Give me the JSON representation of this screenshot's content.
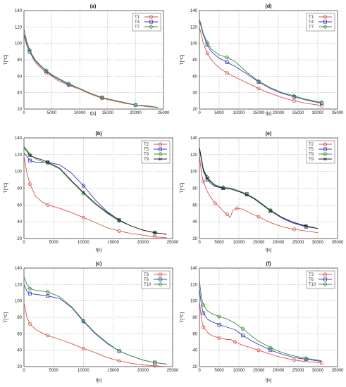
{
  "chart_data": [
    {
      "type": "line",
      "title": "(a)",
      "xlabel": "t[s]",
      "ylabel": "T[°C]",
      "xlim": [
        0,
        25000
      ],
      "ylim": [
        20,
        140
      ],
      "xticks": [
        0,
        5000,
        10000,
        15000,
        20000,
        25000
      ],
      "yticks": [
        20,
        40,
        60,
        80,
        100,
        120,
        140
      ],
      "grid": true,
      "legend": "top-right",
      "series": [
        {
          "name": "T1",
          "color": "#d9534f",
          "marker": "circle",
          "x": [
            0,
            500,
            1000,
            2000,
            3000,
            4000,
            5000,
            6000,
            8000,
            10000,
            12000,
            14000,
            16000,
            18000,
            20000,
            22000,
            24000
          ],
          "y": [
            112,
            100,
            90,
            77,
            70,
            64,
            60,
            55,
            49,
            44,
            38,
            33,
            30,
            27,
            25,
            23,
            22
          ]
        },
        {
          "name": "T4",
          "color": "#3a3abf",
          "marker": "square",
          "x": [
            0,
            500,
            1000,
            2000,
            3000,
            4000,
            5000,
            6000,
            8000,
            10000,
            12000,
            14000,
            16000,
            18000,
            20000,
            22000,
            24000
          ],
          "y": [
            110,
            98,
            90,
            79,
            72,
            66,
            61,
            57,
            50,
            45,
            39,
            34,
            31,
            28,
            25,
            24,
            22
          ]
        },
        {
          "name": "T7",
          "color": "#3f8f3f",
          "marker": "diamond",
          "x": [
            0,
            500,
            1000,
            2000,
            3000,
            4000,
            5000,
            6000,
            8000,
            10000,
            12000,
            14000,
            16000,
            18000,
            20000,
            22000,
            24000
          ],
          "y": [
            118,
            103,
            92,
            80,
            73,
            67,
            62,
            58,
            51,
            45,
            39,
            34,
            31,
            28,
            25,
            24,
            22
          ]
        }
      ]
    },
    {
      "type": "line",
      "title": "(d)",
      "xlabel": "t[s]",
      "ylabel": "T[°C]",
      "xlim": [
        0,
        35000
      ],
      "ylim": [
        20,
        140
      ],
      "xticks": [
        0,
        5000,
        10000,
        15000,
        20000,
        25000,
        30000,
        35000
      ],
      "yticks": [
        20,
        40,
        60,
        80,
        100,
        120,
        140
      ],
      "grid": true,
      "legend": "top-right",
      "series": [
        {
          "name": "T1",
          "color": "#d9534f",
          "marker": "circle",
          "x": [
            0,
            1000,
            2000,
            3000,
            5000,
            7000,
            9000,
            12000,
            15000,
            18000,
            21000,
            24000,
            27000,
            30000,
            31000
          ],
          "y": [
            120,
            100,
            88,
            80,
            70,
            64,
            59,
            52,
            45,
            39,
            34,
            30,
            27,
            25,
            24
          ]
        },
        {
          "name": "T4",
          "color": "#3a3abf",
          "marker": "square",
          "x": [
            0,
            1000,
            2000,
            3000,
            5000,
            7000,
            9000,
            12000,
            15000,
            18000,
            21000,
            24000,
            27000,
            30000,
            31000
          ],
          "y": [
            128,
            110,
            98,
            90,
            82,
            77,
            72,
            63,
            53,
            45,
            39,
            35,
            31,
            28,
            27
          ]
        },
        {
          "name": "T7",
          "color": "#3f8f3f",
          "marker": "diamond",
          "x": [
            0,
            1000,
            2000,
            3000,
            5000,
            7000,
            9000,
            12000,
            15000,
            18000,
            21000,
            24000,
            27000,
            30000,
            31000
          ],
          "y": [
            130,
            112,
            101,
            93,
            86,
            83,
            78,
            65,
            54,
            46,
            40,
            36,
            32,
            29,
            28
          ]
        }
      ]
    },
    {
      "type": "line",
      "title": "(b)",
      "xlabel": "t[s]",
      "ylabel": "T[°C]",
      "xlim": [
        0,
        25000
      ],
      "ylim": [
        20,
        140
      ],
      "xticks": [
        0,
        5000,
        10000,
        15000,
        20000,
        25000
      ],
      "yticks": [
        20,
        40,
        60,
        80,
        100,
        120,
        140
      ],
      "grid": true,
      "legend": "top-right",
      "series": [
        {
          "name": "T2",
          "color": "#d9534f",
          "marker": "circle",
          "x": [
            0,
            500,
            1000,
            2000,
            3000,
            4000,
            6000,
            8000,
            10000,
            12000,
            14000,
            16000,
            18000,
            20000,
            22000,
            24000
          ],
          "y": [
            118,
            98,
            85,
            70,
            64,
            60,
            56,
            51,
            45,
            39,
            33,
            29,
            26,
            24,
            22,
            21
          ]
        },
        {
          "name": "T5",
          "color": "#3a3abf",
          "marker": "square",
          "x": [
            0,
            500,
            1000,
            2000,
            3000,
            4000,
            6000,
            8000,
            10000,
            12000,
            14000,
            16000,
            18000,
            20000,
            22000,
            24000
          ],
          "y": [
            122,
            118,
            113,
            111,
            111,
            111,
            108,
            98,
            83,
            66,
            52,
            42,
            35,
            30,
            27,
            25
          ]
        },
        {
          "name": "T9",
          "color": "#3f8f3f",
          "marker": "diamond",
          "x": [
            0,
            500,
            1000,
            2000,
            3000,
            4000,
            6000,
            8000,
            10000,
            12000,
            14000,
            16000,
            18000,
            20000,
            22000,
            24000
          ],
          "y": [
            130,
            126,
            120,
            115,
            112,
            110,
            103,
            88,
            74,
            61,
            50,
            41,
            35,
            30,
            27,
            25
          ]
        },
        {
          "name": "T9",
          "color": "#222222",
          "marker": "x",
          "x": [
            0,
            500,
            1000,
            2000,
            3000,
            4000,
            6000,
            8000,
            10000,
            12000,
            14000,
            16000,
            18000,
            20000,
            22000,
            24000
          ],
          "y": [
            128,
            124,
            119,
            116,
            114,
            111,
            104,
            89,
            75,
            62,
            51,
            42,
            35,
            30,
            27,
            25
          ]
        }
      ]
    },
    {
      "type": "line",
      "title": "(e)",
      "xlabel": "t[s]",
      "ylabel": "T[°C]",
      "xlim": [
        0,
        35000
      ],
      "ylim": [
        20,
        140
      ],
      "xticks": [
        0,
        5000,
        10000,
        15000,
        20000,
        25000,
        30000,
        35000
      ],
      "yticks": [
        20,
        40,
        60,
        80,
        100,
        120,
        140
      ],
      "grid": true,
      "legend": "top-right",
      "series": [
        {
          "name": "T2",
          "color": "#d9534f",
          "marker": "circle",
          "x": [
            0,
            500,
            1000,
            2000,
            3000,
            4000,
            5000,
            6000,
            7000,
            7800,
            8500,
            9500,
            11000,
            13000,
            15000,
            18000,
            21000,
            24000,
            27000,
            30000
          ],
          "y": [
            120,
            98,
            88,
            76,
            68,
            62,
            58,
            53,
            49,
            45,
            54,
            56,
            55,
            50,
            46,
            39,
            34,
            31,
            29,
            27
          ]
        },
        {
          "name": "T5",
          "color": "#3a3abf",
          "marker": "square",
          "x": [
            0,
            1000,
            2000,
            3000,
            4000,
            6000,
            8000,
            10000,
            12000,
            14000,
            16000,
            18000,
            21000,
            24000,
            27000,
            30000
          ],
          "y": [
            127,
            100,
            90,
            85,
            82,
            80,
            79,
            76,
            73,
            67,
            60,
            53,
            44,
            38,
            34,
            32
          ]
        },
        {
          "name": "T9",
          "color": "#3f8f3f",
          "marker": "diamond",
          "x": [
            0,
            1000,
            2000,
            3000,
            4000,
            6000,
            8000,
            10000,
            12000,
            14000,
            16000,
            18000,
            21000,
            24000,
            27000,
            30000
          ],
          "y": [
            129,
            103,
            93,
            88,
            84,
            81,
            80,
            77,
            73,
            68,
            61,
            54,
            45,
            39,
            35,
            32
          ]
        },
        {
          "name": "T9",
          "color": "#222222",
          "marker": "x",
          "x": [
            0,
            1000,
            2000,
            3000,
            4000,
            6000,
            8000,
            10000,
            12000,
            14000,
            16000,
            18000,
            21000,
            24000,
            27000,
            30000
          ],
          "y": [
            128,
            102,
            92,
            87,
            83,
            80,
            79,
            76,
            72,
            67,
            60,
            53,
            45,
            39,
            35,
            32
          ]
        }
      ]
    },
    {
      "type": "line",
      "title": "(c)",
      "xlabel": "t[s]",
      "ylabel": "T[°C]",
      "xlim": [
        0,
        25000
      ],
      "ylim": [
        20,
        140
      ],
      "xticks": [
        0,
        5000,
        10000,
        15000,
        20000,
        25000
      ],
      "yticks": [
        20,
        40,
        60,
        80,
        100,
        120,
        140
      ],
      "grid": true,
      "legend": "top-right",
      "series": [
        {
          "name": "T3",
          "color": "#d9534f",
          "marker": "circle",
          "x": [
            0,
            500,
            1000,
            2000,
            3000,
            4000,
            6000,
            8000,
            10000,
            12000,
            14000,
            16000,
            18000,
            20000,
            22000,
            24000
          ],
          "y": [
            98,
            80,
            72,
            65,
            61,
            58,
            53,
            48,
            42,
            37,
            31,
            27,
            24,
            22,
            21,
            20
          ]
        },
        {
          "name": "T6",
          "color": "#3a3abf",
          "marker": "square",
          "x": [
            0,
            500,
            1000,
            2000,
            3000,
            4000,
            6000,
            8000,
            10000,
            12000,
            14000,
            16000,
            18000,
            20000,
            22000,
            24000
          ],
          "y": [
            120,
            112,
            109,
            108,
            107,
            106,
            103,
            92,
            75,
            60,
            48,
            39,
            33,
            28,
            25,
            23
          ]
        },
        {
          "name": "T10",
          "color": "#3f8f3f",
          "marker": "diamond",
          "x": [
            0,
            500,
            1000,
            2000,
            3000,
            4000,
            6000,
            8000,
            10000,
            12000,
            14000,
            16000,
            18000,
            20000,
            22000,
            24000
          ],
          "y": [
            130,
            120,
            115,
            113,
            112,
            111,
            105,
            93,
            76,
            61,
            49,
            39,
            33,
            28,
            25,
            23
          ]
        }
      ]
    },
    {
      "type": "line",
      "title": "(f)",
      "xlabel": "t[s]",
      "ylabel": "T[°C]",
      "xlim": [
        0,
        35000
      ],
      "ylim": [
        20,
        140
      ],
      "xticks": [
        0,
        5000,
        10000,
        15000,
        20000,
        25000,
        30000,
        35000
      ],
      "yticks": [
        20,
        40,
        60,
        80,
        100,
        120,
        140
      ],
      "grid": true,
      "legend": "top-right",
      "series": [
        {
          "name": "T3",
          "color": "#d9534f",
          "marker": "circle",
          "x": [
            0,
            500,
            1000,
            2000,
            3000,
            5000,
            7000,
            8000,
            9000,
            11000,
            13000,
            15000,
            18000,
            21000,
            24000,
            27000,
            30000,
            31000
          ],
          "y": [
            100,
            78,
            68,
            62,
            58,
            55,
            53,
            53,
            50,
            46,
            43,
            40,
            35,
            31,
            28,
            26,
            25,
            24
          ]
        },
        {
          "name": "T6",
          "color": "#3a3abf",
          "marker": "square",
          "x": [
            0,
            500,
            1000,
            2000,
            3000,
            5000,
            7000,
            9000,
            11000,
            13000,
            15000,
            18000,
            21000,
            24000,
            27000,
            30000,
            31000
          ],
          "y": [
            115,
            95,
            85,
            78,
            75,
            71,
            68,
            65,
            58,
            52,
            47,
            40,
            35,
            31,
            29,
            27,
            26
          ]
        },
        {
          "name": "T10",
          "color": "#3f8f3f",
          "marker": "diamond",
          "x": [
            0,
            500,
            1000,
            2000,
            3000,
            5000,
            7000,
            9000,
            11000,
            13000,
            15000,
            18000,
            21000,
            24000,
            27000,
            30000,
            31000
          ],
          "y": [
            125,
            105,
            95,
            88,
            85,
            81,
            78,
            73,
            66,
            58,
            51,
            43,
            37,
            33,
            30,
            28,
            27
          ]
        }
      ]
    }
  ]
}
